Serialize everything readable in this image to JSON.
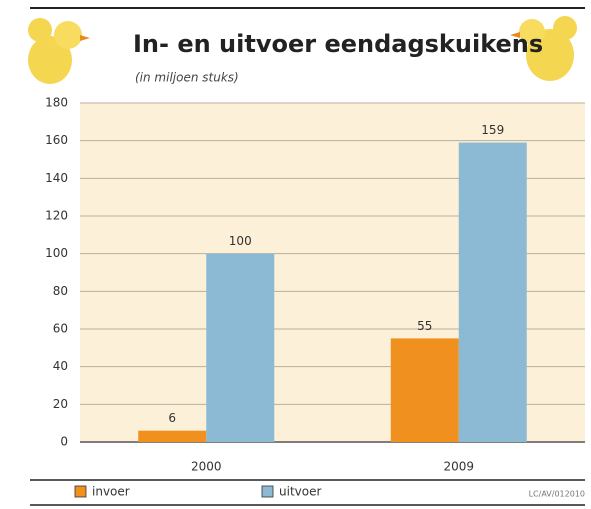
{
  "chart_data": {
    "type": "bar",
    "title": "In- en uitvoer eendagskuikens",
    "subtitle": "(in miljoen stuks)",
    "categories": [
      "2000",
      "2009"
    ],
    "series": [
      {
        "name": "invoer",
        "color": "#f0901e",
        "values": [
          6,
          55
        ]
      },
      {
        "name": "uitvoer",
        "color": "#8cbad5",
        "values": [
          100,
          159
        ]
      }
    ],
    "ylim": [
      0,
      180
    ],
    "yticks": [
      0,
      20,
      40,
      60,
      80,
      100,
      120,
      140,
      160,
      180
    ],
    "grid": true,
    "source": "LC/AV/012010"
  }
}
